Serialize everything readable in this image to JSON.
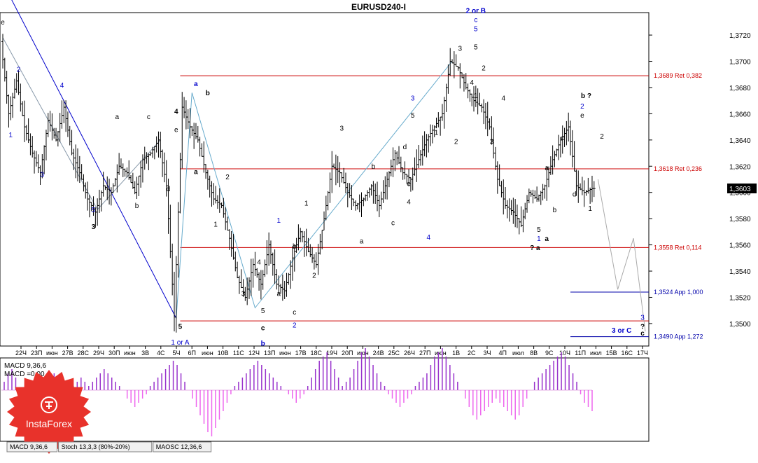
{
  "chart_data": {
    "type": "candlestick",
    "title": "EURUSD240-I",
    "price_range": [
      1.3485,
      1.3735
    ],
    "y_ticks": [
      "1,3720",
      "1,3700",
      "1,3680",
      "1,3660",
      "1,3640",
      "1,3620",
      "1,3600",
      "1,3580",
      "1,3560",
      "1,3540",
      "1,3520",
      "1,3500"
    ],
    "y_tick_values": [
      1.372,
      1.37,
      1.368,
      1.366,
      1.364,
      1.362,
      1.36,
      1.358,
      1.356,
      1.354,
      1.352,
      1.35
    ],
    "current_price": {
      "label": "1,3603",
      "value": 1.3603
    },
    "x_labels": [
      "22Ч",
      "23П",
      "июн",
      "27В",
      "28С",
      "29Ч",
      "30П",
      "июн",
      "3В",
      "4С",
      "5Ч",
      "6П",
      "июн",
      "10В",
      "11С",
      "12Ч",
      "13П",
      "июн",
      "17В",
      "18С",
      "19Ч",
      "20П",
      "июн",
      "24В",
      "25С",
      "26Ч",
      "27П",
      "июн",
      "1В",
      "2С",
      "3Ч",
      "4П",
      "июл",
      "8В",
      "9С",
      "10Ч",
      "11П",
      "июл",
      "15В",
      "16С",
      "17Ч"
    ],
    "x_index_range": [
      0,
      163
    ],
    "levels": [
      {
        "label": "1,3689 Ret 0,382",
        "value": 1.3689,
        "color": "#cc0000",
        "from": 45
      },
      {
        "label": "1,3618 Ret 0,236",
        "value": 1.3618,
        "color": "#cc0000",
        "from": 45
      },
      {
        "label": "1,3558 Ret 0,114",
        "value": 1.3558,
        "color": "#cc0000",
        "from": 45
      },
      {
        "label": "1,3524 App 1,000",
        "value": 1.3524,
        "color": "#0000aa",
        "from": 144
      },
      {
        "label": "1,3502",
        "value": 1.3502,
        "color": "#cc0000",
        "from": 45,
        "hide_label": true
      },
      {
        "label": "1,3490 App 1,272",
        "value": 1.349,
        "color": "#0000aa",
        "from": 144
      }
    ],
    "price_path": [
      [
        0,
        1.3715
      ],
      [
        2,
        1.366
      ],
      [
        4,
        1.3685
      ],
      [
        6,
        1.365
      ],
      [
        8,
        1.363
      ],
      [
        10,
        1.3615
      ],
      [
        12,
        1.3655
      ],
      [
        14,
        1.364
      ],
      [
        16,
        1.3665
      ],
      [
        18,
        1.363
      ],
      [
        20,
        1.3615
      ],
      [
        22,
        1.3595
      ],
      [
        24,
        1.3585
      ],
      [
        26,
        1.3605
      ],
      [
        28,
        1.36
      ],
      [
        30,
        1.362
      ],
      [
        32,
        1.3615
      ],
      [
        34,
        1.36
      ],
      [
        36,
        1.3625
      ],
      [
        38,
        1.363
      ],
      [
        40,
        1.364
      ],
      [
        42,
        1.3605
      ],
      [
        44,
        1.3505
      ],
      [
        46,
        1.3665
      ],
      [
        48,
        1.365
      ],
      [
        50,
        1.364
      ],
      [
        52,
        1.3615
      ],
      [
        54,
        1.3595
      ],
      [
        56,
        1.359
      ],
      [
        58,
        1.3565
      ],
      [
        60,
        1.3535
      ],
      [
        62,
        1.352
      ],
      [
        64,
        1.3545
      ],
      [
        66,
        1.353
      ],
      [
        68,
        1.356
      ],
      [
        70,
        1.353
      ],
      [
        72,
        1.3525
      ],
      [
        74,
        1.355
      ],
      [
        76,
        1.357
      ],
      [
        78,
        1.3555
      ],
      [
        80,
        1.3545
      ],
      [
        82,
        1.358
      ],
      [
        84,
        1.362
      ],
      [
        86,
        1.3615
      ],
      [
        88,
        1.36
      ],
      [
        90,
        1.359
      ],
      [
        92,
        1.3595
      ],
      [
        94,
        1.3605
      ],
      [
        96,
        1.359
      ],
      [
        98,
        1.361
      ],
      [
        100,
        1.363
      ],
      [
        102,
        1.3615
      ],
      [
        104,
        1.361
      ],
      [
        106,
        1.3625
      ],
      [
        108,
        1.364
      ],
      [
        110,
        1.365
      ],
      [
        112,
        1.366
      ],
      [
        114,
        1.37
      ],
      [
        116,
        1.3695
      ],
      [
        118,
        1.368
      ],
      [
        120,
        1.367
      ],
      [
        122,
        1.3665
      ],
      [
        124,
        1.365
      ],
      [
        126,
        1.361
      ],
      [
        128,
        1.359
      ],
      [
        130,
        1.3585
      ],
      [
        132,
        1.3575
      ],
      [
        134,
        1.36
      ],
      [
        136,
        1.3595
      ],
      [
        138,
        1.3605
      ],
      [
        140,
        1.3625
      ],
      [
        142,
        1.364
      ],
      [
        144,
        1.365
      ],
      [
        146,
        1.3605
      ],
      [
        148,
        1.36
      ],
      [
        150,
        1.3603
      ]
    ],
    "wave_lines": [
      {
        "color": "#0000cc",
        "points": [
          [
            0,
            1.376
          ],
          [
            44,
            1.3504
          ]
        ]
      },
      {
        "color": "#8899aa",
        "points": [
          [
            0,
            1.3718
          ],
          [
            24,
            1.3587
          ],
          [
            40,
            1.364
          ]
        ]
      },
      {
        "color": "#66aacc",
        "points": [
          [
            44,
            1.3504
          ],
          [
            48,
            1.3676
          ],
          [
            64,
            1.3512
          ],
          [
            114,
            1.37
          ]
        ]
      },
      {
        "color": "#aaaaaa",
        "points": [
          [
            151,
            1.361
          ],
          [
            156,
            1.3526
          ],
          [
            160,
            1.3565
          ],
          [
            163,
            1.3494
          ]
        ]
      }
    ],
    "wave_labels": [
      {
        "t": "e",
        "i": 0,
        "v": 1.3728,
        "c": "#000"
      },
      {
        "t": "1",
        "i": 2,
        "v": 1.3642,
        "c": "#0000cc"
      },
      {
        "t": "2",
        "i": 4,
        "v": 1.3692,
        "c": "#0000cc"
      },
      {
        "t": "3",
        "i": 10,
        "v": 1.3612,
        "c": "#0000cc"
      },
      {
        "t": "4",
        "i": 15,
        "v": 1.368,
        "c": "#0000cc"
      },
      {
        "t": "5",
        "i": 23,
        "v": 1.3585,
        "c": "#0000cc"
      },
      {
        "t": "3",
        "i": 23,
        "v": 1.3572,
        "c": "#000",
        "b": true
      },
      {
        "t": "a",
        "i": 29,
        "v": 1.3656,
        "c": "#000"
      },
      {
        "t": "b",
        "i": 34,
        "v": 1.3588,
        "c": "#000"
      },
      {
        "t": "c",
        "i": 37,
        "v": 1.3656,
        "c": "#000"
      },
      {
        "t": "d",
        "i": 42,
        "v": 1.3601,
        "c": "#000"
      },
      {
        "t": "4",
        "i": 44,
        "v": 1.366,
        "c": "#000",
        "b": true
      },
      {
        "t": "e",
        "i": 44,
        "v": 1.3646,
        "c": "#000"
      },
      {
        "t": "5",
        "i": 45,
        "v": 1.3496,
        "c": "#000",
        "b": true
      },
      {
        "t": "1 or A",
        "i": 45,
        "v": 1.3484,
        "c": "#0000cc"
      },
      {
        "t": "a",
        "i": 49,
        "v": 1.3681,
        "c": "#0000cc",
        "b": true
      },
      {
        "t": "b",
        "i": 52,
        "v": 1.3674,
        "c": "#000",
        "b": true
      },
      {
        "t": "a",
        "i": 49,
        "v": 1.3614,
        "c": "#000",
        "b": true
      },
      {
        "t": "2",
        "i": 57,
        "v": 1.361,
        "c": "#000"
      },
      {
        "t": "1",
        "i": 54,
        "v": 1.3574,
        "c": "#000"
      },
      {
        "t": "3",
        "i": 61,
        "v": 1.3521,
        "c": "#000"
      },
      {
        "t": "4",
        "i": 65,
        "v": 1.3545,
        "c": "#000"
      },
      {
        "t": "5",
        "i": 66,
        "v": 1.3508,
        "c": "#000"
      },
      {
        "t": "c",
        "i": 66,
        "v": 1.3495,
        "c": "#000",
        "b": true
      },
      {
        "t": "b",
        "i": 66,
        "v": 1.3483,
        "c": "#0000cc",
        "b": true
      },
      {
        "t": "1",
        "i": 70,
        "v": 1.3577,
        "c": "#0000cc"
      },
      {
        "t": "a",
        "i": 70,
        "v": 1.3521,
        "c": "#000"
      },
      {
        "t": "b",
        "i": 74,
        "v": 1.3557,
        "c": "#000"
      },
      {
        "t": "c",
        "i": 74,
        "v": 1.3507,
        "c": "#000"
      },
      {
        "t": "2",
        "i": 74,
        "v": 1.3497,
        "c": "#0000cc"
      },
      {
        "t": "1",
        "i": 77,
        "v": 1.359,
        "c": "#000"
      },
      {
        "t": "2",
        "i": 79,
        "v": 1.3535,
        "c": "#000"
      },
      {
        "t": "3",
        "i": 86,
        "v": 1.3647,
        "c": "#000"
      },
      {
        "t": "a",
        "i": 91,
        "v": 1.3561,
        "c": "#000"
      },
      {
        "t": "b",
        "i": 94,
        "v": 1.3618,
        "c": "#000"
      },
      {
        "t": "c",
        "i": 99,
        "v": 1.3575,
        "c": "#000"
      },
      {
        "t": "d",
        "i": 102,
        "v": 1.3633,
        "c": "#000"
      },
      {
        "t": "e",
        "i": 103,
        "v": 1.3605,
        "c": "#000"
      },
      {
        "t": "4",
        "i": 103,
        "v": 1.3591,
        "c": "#000"
      },
      {
        "t": "3",
        "i": 104,
        "v": 1.367,
        "c": "#0000cc"
      },
      {
        "t": "5",
        "i": 104,
        "v": 1.3657,
        "c": "#000"
      },
      {
        "t": "4",
        "i": 108,
        "v": 1.3564,
        "c": "#0000cc"
      },
      {
        "t": "1",
        "i": 110,
        "v": 1.3644,
        "c": "#000"
      },
      {
        "t": "2",
        "i": 115,
        "v": 1.3637,
        "c": "#000"
      },
      {
        "t": "3",
        "i": 116,
        "v": 1.3708,
        "c": "#000"
      },
      {
        "t": "4",
        "i": 119,
        "v": 1.3682,
        "c": "#000"
      },
      {
        "t": "5",
        "i": 120,
        "v": 1.3709,
        "c": "#000"
      },
      {
        "t": "1",
        "i": 120,
        "v": 1.3672,
        "c": "#000"
      },
      {
        "t": "2",
        "i": 122,
        "v": 1.3693,
        "c": "#000"
      },
      {
        "t": "5",
        "i": 120,
        "v": 1.3723,
        "c": "#0000cc"
      },
      {
        "t": "c",
        "i": 120,
        "v": 1.373,
        "c": "#0000cc"
      },
      {
        "t": "2 or B",
        "i": 120,
        "v": 1.3737,
        "c": "#0000cc",
        "b": true
      },
      {
        "t": "4",
        "i": 127,
        "v": 1.367,
        "c": "#000"
      },
      {
        "t": "3",
        "i": 124,
        "v": 1.3637,
        "c": "#000"
      },
      {
        "t": "a",
        "i": 138,
        "v": 1.3617,
        "c": "#000"
      },
      {
        "t": "b",
        "i": 140,
        "v": 1.3585,
        "c": "#000"
      },
      {
        "t": "c",
        "i": 142,
        "v": 1.364,
        "c": "#000"
      },
      {
        "t": "d",
        "i": 145,
        "v": 1.3597,
        "c": "#000"
      },
      {
        "t": "e",
        "i": 147,
        "v": 1.3657,
        "c": "#000"
      },
      {
        "t": "2",
        "i": 147,
        "v": 1.3664,
        "c": "#0000cc"
      },
      {
        "t": "b  ?",
        "i": 148,
        "v": 1.3672,
        "c": "#000",
        "b": true
      },
      {
        "t": "2",
        "i": 152,
        "v": 1.3641,
        "c": "#000"
      },
      {
        "t": "1",
        "i": 149,
        "v": 1.3586,
        "c": "#000"
      },
      {
        "t": "5",
        "i": 136,
        "v": 1.357,
        "c": "#000"
      },
      {
        "t": "1",
        "i": 136,
        "v": 1.3563,
        "c": "#0000cc"
      },
      {
        "t": "a",
        "i": 138,
        "v": 1.3563,
        "c": "#000",
        "b": true
      },
      {
        "t": "? a",
        "i": 135,
        "v": 1.3556,
        "c": "#000",
        "b": true
      },
      {
        "t": "3 or C",
        "i": 157,
        "v": 1.3493,
        "c": "#0000cc",
        "b": true
      },
      {
        "t": "3",
        "i": 167,
        "v": 1.3503,
        "c": "#0000cc"
      },
      {
        "t": "?",
        "i": 165,
        "v": 1.3496,
        "c": "#000",
        "b": true
      },
      {
        "t": "c",
        "i": 167,
        "v": 1.3491,
        "c": "#000",
        "b": true
      }
    ],
    "macd": {
      "label": "MACD 9,36,6",
      "signal_label": "MACD =0,00",
      "values": [
        0.2,
        0.4,
        0.5,
        0.3,
        -0.2,
        -0.4,
        -0.6,
        -0.5,
        -0.3,
        -0.1,
        0.1,
        0.2,
        0.3,
        0.4,
        0.2,
        -0.1,
        -0.2,
        -0.1,
        0.1,
        0.2,
        0.3,
        0.2,
        0.1,
        0.2,
        0.3,
        0.4,
        0.5,
        0.4,
        0.3,
        0.2,
        0.1,
        0.0,
        -0.2,
        -0.3,
        -0.4,
        -0.3,
        -0.2,
        -0.1,
        0.1,
        0.2,
        0.3,
        0.4,
        0.5,
        0.6,
        0.7,
        0.6,
        0.4,
        0.2,
        0.0,
        -0.2,
        -0.4,
        -0.6,
        -0.8,
        -1.0,
        -1.1,
        -0.9,
        -0.7,
        -0.5,
        -0.3,
        -0.1,
        0.1,
        0.2,
        0.3,
        0.4,
        0.5,
        0.6,
        0.7,
        0.6,
        0.5,
        0.4,
        0.3,
        0.2,
        0.1,
        0.0,
        -0.1,
        -0.2,
        -0.3,
        -0.2,
        -0.1,
        0.1,
        0.3,
        0.5,
        0.7,
        0.8,
        0.9,
        0.7,
        0.5,
        0.3,
        0.1,
        0.2,
        0.3,
        0.5,
        0.7,
        0.9,
        1.0,
        0.8,
        0.6,
        0.4,
        0.2,
        0.1,
        -0.1,
        -0.2,
        -0.3,
        -0.4,
        -0.3,
        -0.2,
        -0.1,
        0.1,
        0.2,
        0.3,
        0.4,
        0.6,
        0.8,
        0.9,
        1.0,
        0.8,
        0.6,
        0.4,
        0.2,
        0.0,
        -0.2,
        -0.4,
        -0.6,
        -0.7,
        -0.6,
        -0.5,
        -0.4,
        -0.3,
        -0.2,
        -0.3,
        -0.4,
        -0.5,
        -0.6,
        -0.7,
        -0.6,
        -0.4,
        -0.2,
        0.0,
        0.2,
        0.3,
        0.4,
        0.5,
        0.6,
        0.7,
        0.8,
        0.9,
        0.8,
        0.6,
        0.4,
        0.2,
        -0.1,
        -0.3,
        -0.4,
        -0.5
      ]
    },
    "tabs": [
      "MACD 9,36,6",
      "Stoch 13,3,3 (80%-20%)",
      "MAOSC 12,36,6"
    ],
    "logo_text": "InstaForex",
    "colors": {
      "candle": "#000000",
      "macd_pos": "#9933cc",
      "macd_neg": "#ee66ee",
      "ret": "#cc0000",
      "app": "#0000aa"
    }
  }
}
